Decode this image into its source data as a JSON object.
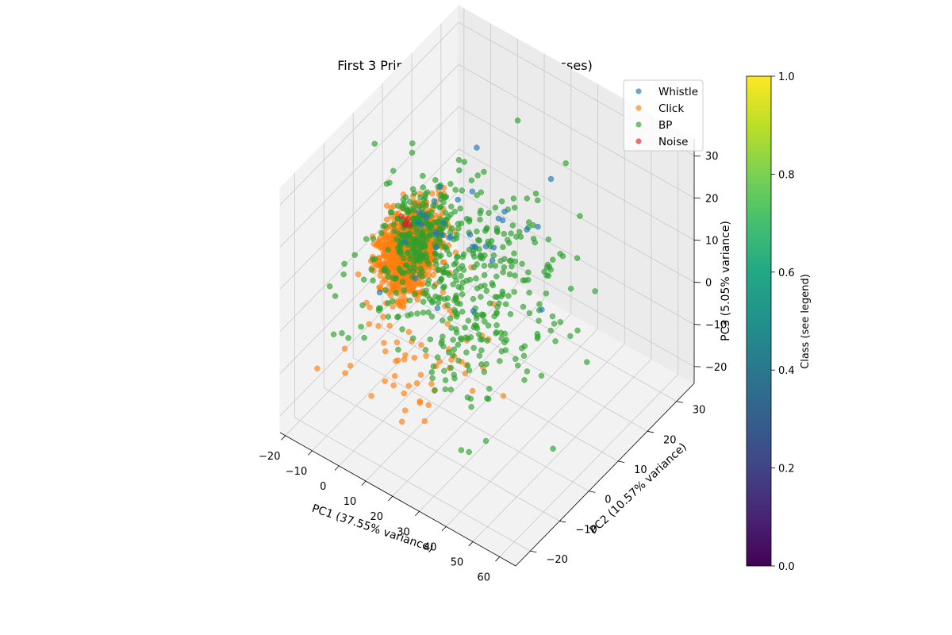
{
  "chart_data": {
    "type": "scatter",
    "title": "First 3 Principal Components (4 Classes)",
    "xlabel": "PC1 (37.55% variance)",
    "ylabel": "PC2 (10.57% variance)",
    "zlabel": "PC3 (5.05% variance)",
    "projection": "3d",
    "xlim": [
      -22,
      66
    ],
    "ylim": [
      -25,
      36
    ],
    "zlim": [
      -24,
      34
    ],
    "xticks": [
      "−20",
      "−10",
      "0",
      "10",
      "20",
      "30",
      "40",
      "50",
      "60"
    ],
    "yticks": [
      "−20",
      "−10",
      "0",
      "10",
      "20",
      "30"
    ],
    "zticks": [
      "−20",
      "−10",
      "0",
      "10",
      "20",
      "30"
    ],
    "grid": true,
    "legend_position": "top-right",
    "series": [
      {
        "name": "Whistle",
        "color": "#1f77b4"
      },
      {
        "name": "Click",
        "color": "#ff7f0e"
      },
      {
        "name": "BP",
        "color": "#2ca02c"
      },
      {
        "name": "Noise",
        "color": "#d62728"
      }
    ],
    "colorbar": {
      "label": "Class (see legend)",
      "colormap": "viridis",
      "range": [
        0,
        1
      ],
      "ticks": [
        "0.0",
        "0.2",
        "0.4",
        "0.6",
        "0.8",
        "1.0"
      ]
    }
  }
}
